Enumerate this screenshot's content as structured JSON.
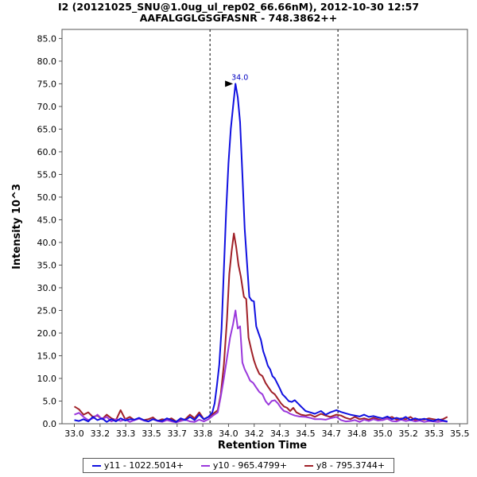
{
  "chart_data": {
    "type": "line",
    "title": "I2 (20121025_SNU@1.0ug_ul_rep02_66.66nM), 2012-10-30 12:57",
    "subtitle": "AAFALGGLGSGFASNR - 748.3862++",
    "xlabel": "Retention Time",
    "ylabel": "Intensity 10^3",
    "xlim": [
      32.92,
      35.55
    ],
    "ylim": [
      0,
      87
    ],
    "x_ticks": [
      "33.0",
      "33.2",
      "33.3",
      "33.5",
      "33.7",
      "33.8",
      "34.0",
      "34.2",
      "34.3",
      "34.5",
      "34.7",
      "34.8",
      "35.0",
      "35.2",
      "35.3",
      "35.5"
    ],
    "y_ticks": [
      "0.0",
      "5.0",
      "10.0",
      "15.0",
      "20.0",
      "25.0",
      "30.0",
      "35.0",
      "40.0",
      "45.0",
      "50.0",
      "55.0",
      "60.0",
      "65.0",
      "70.0",
      "75.0",
      "80.0",
      "85.0"
    ],
    "integration_bounds": [
      33.88,
      34.71
    ],
    "peak_annotation": {
      "label": "34.0",
      "x": 34.05,
      "y": 75.0
    },
    "legend_position": "bottom",
    "series": [
      {
        "name": "y11 - 1022.5014+",
        "color": "#1010e0",
        "points": [
          [
            33.0,
            0.8
          ],
          [
            33.03,
            0.6
          ],
          [
            33.06,
            1.0
          ],
          [
            33.09,
            0.5
          ],
          [
            33.12,
            1.5
          ],
          [
            33.15,
            0.8
          ],
          [
            33.18,
            1.2
          ],
          [
            33.21,
            0.4
          ],
          [
            33.24,
            1.0
          ],
          [
            33.27,
            0.5
          ],
          [
            33.3,
            1.2
          ],
          [
            33.33,
            0.7
          ],
          [
            33.36,
            1.0
          ],
          [
            33.39,
            0.9
          ],
          [
            33.42,
            1.3
          ],
          [
            33.45,
            0.8
          ],
          [
            33.48,
            0.5
          ],
          [
            33.51,
            1.0
          ],
          [
            33.54,
            0.7
          ],
          [
            33.57,
            0.6
          ],
          [
            33.6,
            1.2
          ],
          [
            33.63,
            0.8
          ],
          [
            33.66,
            0.4
          ],
          [
            33.69,
            1.2
          ],
          [
            33.72,
            0.8
          ],
          [
            33.75,
            1.5
          ],
          [
            33.78,
            0.8
          ],
          [
            33.81,
            2.0
          ],
          [
            33.84,
            1.0
          ],
          [
            33.87,
            1.5
          ],
          [
            33.895,
            2.5
          ],
          [
            33.91,
            4.5
          ],
          [
            33.925,
            8.5
          ],
          [
            33.94,
            13.0
          ],
          [
            33.955,
            21.0
          ],
          [
            33.97,
            34.0
          ],
          [
            33.985,
            47.0
          ],
          [
            34.0,
            57.5
          ],
          [
            34.015,
            65.0
          ],
          [
            34.03,
            70.0
          ],
          [
            34.045,
            75.0
          ],
          [
            34.06,
            72.0
          ],
          [
            34.075,
            66.5
          ],
          [
            34.09,
            55.0
          ],
          [
            34.105,
            43.0
          ],
          [
            34.12,
            35.5
          ],
          [
            34.135,
            28.0
          ],
          [
            34.15,
            27.2
          ],
          [
            34.165,
            27.0
          ],
          [
            34.18,
            21.5
          ],
          [
            34.195,
            20.0
          ],
          [
            34.21,
            18.5
          ],
          [
            34.225,
            16.0
          ],
          [
            34.24,
            14.5
          ],
          [
            34.255,
            12.8
          ],
          [
            34.27,
            12.0
          ],
          [
            34.285,
            10.5
          ],
          [
            34.3,
            10.0
          ],
          [
            34.315,
            9.0
          ],
          [
            34.33,
            8.0
          ],
          [
            34.35,
            6.5
          ],
          [
            34.37,
            5.8
          ],
          [
            34.39,
            5.0
          ],
          [
            34.41,
            4.8
          ],
          [
            34.43,
            5.2
          ],
          [
            34.45,
            4.5
          ],
          [
            34.47,
            3.8
          ],
          [
            34.5,
            2.8
          ],
          [
            34.53,
            2.5
          ],
          [
            34.56,
            2.2
          ],
          [
            34.6,
            2.8
          ],
          [
            34.63,
            2.0
          ],
          [
            34.66,
            2.5
          ],
          [
            34.7,
            3.0
          ],
          [
            34.73,
            2.6
          ],
          [
            34.76,
            2.3
          ],
          [
            34.79,
            2.0
          ],
          [
            34.82,
            1.8
          ],
          [
            34.85,
            1.6
          ],
          [
            34.88,
            2.0
          ],
          [
            34.91,
            1.5
          ],
          [
            34.94,
            1.7
          ],
          [
            34.97,
            1.4
          ],
          [
            35.0,
            1.2
          ],
          [
            35.03,
            1.6
          ],
          [
            35.06,
            1.0
          ],
          [
            35.09,
            1.3
          ],
          [
            35.12,
            1.0
          ],
          [
            35.15,
            1.5
          ],
          [
            35.18,
            0.8
          ],
          [
            35.21,
            1.2
          ],
          [
            35.24,
            0.9
          ],
          [
            35.27,
            1.1
          ],
          [
            35.3,
            0.8
          ],
          [
            35.33,
            0.6
          ],
          [
            35.36,
            1.0
          ],
          [
            35.39,
            0.7
          ],
          [
            35.42,
            0.5
          ]
        ]
      },
      {
        "name": "y10 - 965.4799+",
        "color": "#9a38dc",
        "points": [
          [
            33.0,
            2.0
          ],
          [
            33.03,
            2.4
          ],
          [
            33.06,
            1.5
          ],
          [
            33.09,
            0.8
          ],
          [
            33.12,
            1.2
          ],
          [
            33.15,
            2.0
          ],
          [
            33.18,
            1.0
          ],
          [
            33.21,
            1.5
          ],
          [
            33.24,
            0.5
          ],
          [
            33.27,
            1.0
          ],
          [
            33.3,
            0.6
          ],
          [
            33.33,
            1.0
          ],
          [
            33.36,
            0.4
          ],
          [
            33.39,
            0.8
          ],
          [
            33.42,
            1.1
          ],
          [
            33.45,
            0.7
          ],
          [
            33.48,
            0.5
          ],
          [
            33.51,
            1.0
          ],
          [
            33.54,
            0.6
          ],
          [
            33.57,
            0.4
          ],
          [
            33.6,
            0.8
          ],
          [
            33.63,
            0.5
          ],
          [
            33.66,
            0.3
          ],
          [
            33.69,
            0.6
          ],
          [
            33.72,
            0.9
          ],
          [
            33.75,
            0.5
          ],
          [
            33.78,
            0.4
          ],
          [
            33.81,
            0.9
          ],
          [
            33.84,
            0.5
          ],
          [
            33.87,
            1.0
          ],
          [
            33.9,
            1.8
          ],
          [
            33.93,
            2.5
          ],
          [
            33.95,
            6.0
          ],
          [
            33.97,
            10.0
          ],
          [
            33.99,
            14.5
          ],
          [
            34.01,
            19.0
          ],
          [
            34.03,
            22.0
          ],
          [
            34.045,
            25.0
          ],
          [
            34.06,
            21.0
          ],
          [
            34.075,
            21.5
          ],
          [
            34.09,
            13.5
          ],
          [
            34.105,
            12.0
          ],
          [
            34.12,
            11.0
          ],
          [
            34.14,
            9.5
          ],
          [
            34.16,
            9.0
          ],
          [
            34.18,
            8.0
          ],
          [
            34.2,
            7.0
          ],
          [
            34.22,
            6.5
          ],
          [
            34.24,
            5.0
          ],
          [
            34.26,
            4.2
          ],
          [
            34.28,
            5.0
          ],
          [
            34.3,
            5.2
          ],
          [
            34.32,
            4.5
          ],
          [
            34.34,
            3.5
          ],
          [
            34.36,
            2.8
          ],
          [
            34.38,
            2.6
          ],
          [
            34.4,
            2.2
          ],
          [
            34.43,
            1.8
          ],
          [
            34.46,
            1.6
          ],
          [
            34.5,
            1.5
          ],
          [
            34.53,
            1.3
          ],
          [
            34.56,
            1.0
          ],
          [
            34.6,
            1.0
          ],
          [
            34.63,
            0.9
          ],
          [
            34.66,
            1.2
          ],
          [
            34.7,
            1.5
          ],
          [
            34.73,
            0.8
          ],
          [
            34.76,
            0.5
          ],
          [
            34.79,
            0.6
          ],
          [
            34.82,
            0.8
          ],
          [
            34.85,
            0.4
          ],
          [
            34.88,
            0.9
          ],
          [
            34.91,
            0.6
          ],
          [
            34.94,
            1.0
          ],
          [
            34.97,
            0.7
          ],
          [
            35.0,
            0.8
          ],
          [
            35.03,
            1.1
          ],
          [
            35.06,
            0.6
          ],
          [
            35.09,
            0.5
          ],
          [
            35.12,
            0.9
          ],
          [
            35.15,
            0.6
          ],
          [
            35.18,
            0.8
          ],
          [
            35.21,
            0.5
          ],
          [
            35.24,
            0.7
          ],
          [
            35.27,
            0.4
          ],
          [
            35.3,
            0.6
          ],
          [
            35.33,
            0.5
          ],
          [
            35.36,
            0.4
          ],
          [
            35.39,
            0.6
          ],
          [
            35.42,
            0.4
          ]
        ]
      },
      {
        "name": "y8 - 795.3744+",
        "color": "#a02028",
        "points": [
          [
            33.0,
            3.8
          ],
          [
            33.03,
            3.2
          ],
          [
            33.06,
            2.0
          ],
          [
            33.09,
            2.5
          ],
          [
            33.12,
            1.5
          ],
          [
            33.15,
            1.8
          ],
          [
            33.18,
            1.0
          ],
          [
            33.21,
            2.0
          ],
          [
            33.24,
            1.2
          ],
          [
            33.27,
            0.8
          ],
          [
            33.3,
            3.0
          ],
          [
            33.33,
            1.0
          ],
          [
            33.36,
            1.5
          ],
          [
            33.39,
            0.8
          ],
          [
            33.42,
            1.2
          ],
          [
            33.45,
            0.8
          ],
          [
            33.48,
            1.0
          ],
          [
            33.51,
            1.4
          ],
          [
            33.54,
            0.6
          ],
          [
            33.57,
            1.0
          ],
          [
            33.6,
            0.8
          ],
          [
            33.63,
            1.2
          ],
          [
            33.66,
            0.5
          ],
          [
            33.69,
            0.8
          ],
          [
            33.72,
            1.0
          ],
          [
            33.75,
            2.0
          ],
          [
            33.78,
            1.2
          ],
          [
            33.81,
            2.5
          ],
          [
            33.84,
            1.0
          ],
          [
            33.87,
            1.5
          ],
          [
            33.9,
            2.2
          ],
          [
            33.93,
            3.0
          ],
          [
            33.95,
            6.5
          ],
          [
            33.97,
            13.0
          ],
          [
            33.99,
            23.0
          ],
          [
            34.005,
            33.0
          ],
          [
            34.02,
            38.0
          ],
          [
            34.035,
            42.0
          ],
          [
            34.05,
            39.0
          ],
          [
            34.065,
            35.0
          ],
          [
            34.08,
            32.5
          ],
          [
            34.1,
            28.0
          ],
          [
            34.115,
            27.5
          ],
          [
            34.13,
            19.0
          ],
          [
            34.15,
            16.0
          ],
          [
            34.165,
            14.0
          ],
          [
            34.18,
            12.5
          ],
          [
            34.2,
            11.0
          ],
          [
            34.22,
            10.5
          ],
          [
            34.24,
            9.0
          ],
          [
            34.26,
            8.0
          ],
          [
            34.28,
            7.0
          ],
          [
            34.3,
            6.5
          ],
          [
            34.32,
            5.5
          ],
          [
            34.34,
            4.5
          ],
          [
            34.36,
            3.8
          ],
          [
            34.38,
            3.5
          ],
          [
            34.4,
            2.8
          ],
          [
            34.42,
            3.5
          ],
          [
            34.44,
            2.5
          ],
          [
            34.47,
            2.0
          ],
          [
            34.5,
            1.8
          ],
          [
            34.53,
            2.0
          ],
          [
            34.56,
            1.5
          ],
          [
            34.6,
            2.2
          ],
          [
            34.63,
            1.8
          ],
          [
            34.66,
            1.5
          ],
          [
            34.7,
            2.0
          ],
          [
            34.73,
            1.8
          ],
          [
            34.76,
            1.3
          ],
          [
            34.79,
            1.0
          ],
          [
            34.82,
            1.5
          ],
          [
            34.85,
            1.0
          ],
          [
            34.88,
            1.2
          ],
          [
            34.91,
            0.9
          ],
          [
            34.94,
            1.3
          ],
          [
            34.97,
            1.0
          ],
          [
            35.0,
            0.8
          ],
          [
            35.03,
            1.2
          ],
          [
            35.06,
            1.5
          ],
          [
            35.09,
            0.9
          ],
          [
            35.12,
            1.2
          ],
          [
            35.15,
            1.0
          ],
          [
            35.18,
            1.5
          ],
          [
            35.21,
            0.8
          ],
          [
            35.24,
            1.0
          ],
          [
            35.27,
            0.9
          ],
          [
            35.3,
            1.2
          ],
          [
            35.33,
            1.0
          ],
          [
            35.36,
            0.8
          ],
          [
            35.39,
            1.0
          ],
          [
            35.42,
            1.5
          ]
        ]
      }
    ]
  }
}
